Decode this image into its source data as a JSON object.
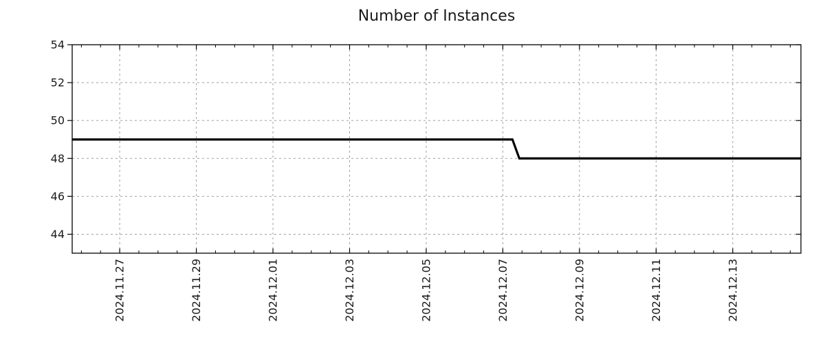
{
  "chart_data": {
    "type": "line",
    "title": "Number of Instances",
    "x_axis": {
      "tick_labels": [
        "2024.11.27",
        "2024.11.29",
        "2024.12.01",
        "2024.12.03",
        "2024.12.05",
        "2024.12.07",
        "2024.12.09",
        "2024.12.11",
        "2024.12.13"
      ],
      "tick_days": [
        0,
        2,
        4,
        6,
        8,
        10,
        12,
        14,
        16
      ],
      "minor_tick_step_days": 0.5,
      "range_days": [
        -1.24,
        17.78
      ]
    },
    "y_axis": {
      "tick_labels": [
        "44",
        "46",
        "48",
        "50",
        "52",
        "54"
      ],
      "ticks": [
        44,
        46,
        48,
        50,
        52,
        54
      ],
      "range": [
        43,
        54
      ]
    },
    "series": [
      {
        "name": "instances",
        "color": "#000000",
        "line_width": 3.2,
        "points_days_value": [
          [
            -1.24,
            49
          ],
          [
            10.25,
            49
          ],
          [
            10.43,
            48
          ],
          [
            17.78,
            48
          ]
        ]
      }
    ],
    "values_summary": "49 instances until 2024.12.07, then 48 instances through 2024.12.14",
    "grid": {
      "show": true,
      "color": "#9e9e9e",
      "dash": "3 4"
    },
    "legend": "none",
    "axis_color": "#000000",
    "background": "#ffffff"
  }
}
